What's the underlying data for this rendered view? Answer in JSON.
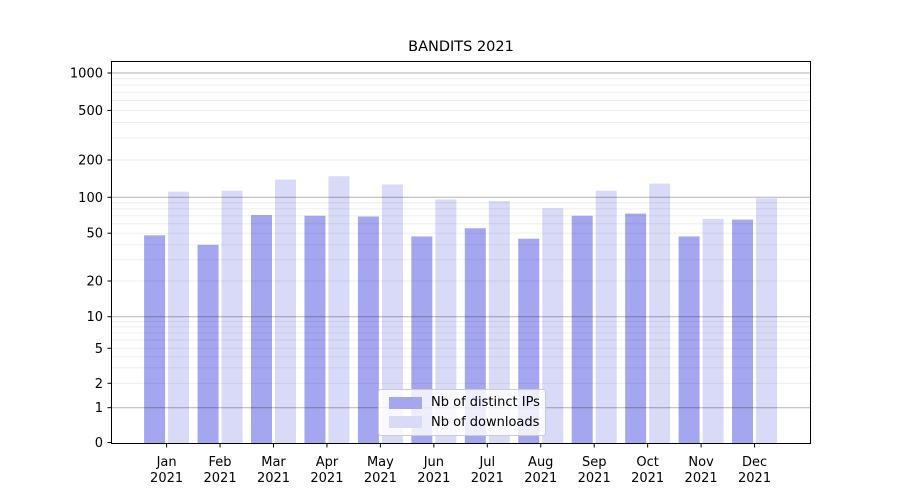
{
  "chart_data": {
    "type": "bar",
    "title": "BANDITS 2021",
    "categories": [
      "Jan 2021",
      "Feb 2021",
      "Mar 2021",
      "Apr 2021",
      "May 2021",
      "Jun 2021",
      "Jul 2021",
      "Aug 2021",
      "Sep 2021",
      "Oct 2021",
      "Nov 2021",
      "Dec 2021"
    ],
    "series": [
      {
        "name": "Nb of distinct IPs",
        "color": "#a5a6f0",
        "values": [
          48,
          40,
          71,
          70,
          69,
          47,
          55,
          45,
          70,
          73,
          47,
          65
        ]
      },
      {
        "name": "Nb of downloads",
        "color": "#d9daf8",
        "values": [
          111,
          113,
          139,
          148,
          127,
          96,
          93,
          81,
          113,
          129,
          66,
          98
        ]
      }
    ],
    "y_axis": {
      "scale": "symlog",
      "ticks": [
        0,
        1,
        2,
        5,
        10,
        20,
        50,
        100,
        200,
        500,
        1000
      ],
      "ylim": [
        0,
        1000
      ]
    },
    "grid": true,
    "legend": {
      "position": "lower-center",
      "entries": [
        "Nb of distinct IPs",
        "Nb of downloads"
      ]
    }
  },
  "colors": {
    "background": "#ffffff",
    "axis": "#000000",
    "major_grid": "rgba(0,0,0,0.30)",
    "minor_grid": "rgba(0,0,0,0.075)"
  }
}
